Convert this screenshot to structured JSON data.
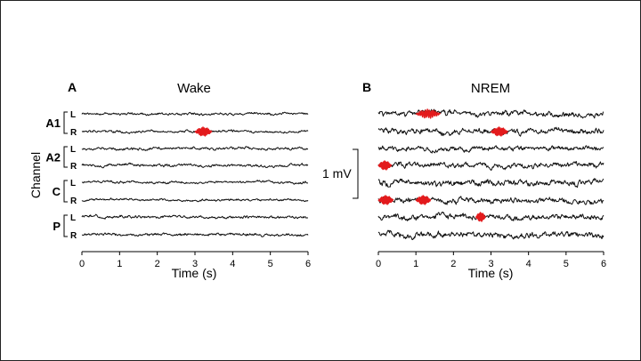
{
  "figure": {
    "ylabel": "Channel",
    "scale_bar_label": "1 mV",
    "colors": {
      "trace": "#111111",
      "spindle": "#e31a1c"
    }
  },
  "channels": [
    {
      "group": "A1",
      "sides": [
        "L",
        "R"
      ]
    },
    {
      "group": "A2",
      "sides": [
        "L",
        "R"
      ]
    },
    {
      "group": "C",
      "sides": [
        "L",
        "R"
      ]
    },
    {
      "group": "P",
      "sides": [
        "L",
        "R"
      ]
    }
  ],
  "chart_data": [
    {
      "type": "line",
      "panel": "A",
      "title": "Wake",
      "xlabel": "Time (s)",
      "xlim": [
        0,
        6
      ],
      "xticks": [
        "0",
        "1",
        "2",
        "3",
        "4",
        "5",
        "6"
      ],
      "series_labels": [
        "A1 L",
        "A1 R",
        "A2 L",
        "A2 R",
        "C L",
        "C R",
        "P L",
        "P R"
      ],
      "traces": {
        "channel_count": 8,
        "amplitude_mV": [
          0.05,
          0.05,
          0.06,
          0.06,
          0.05,
          0.05,
          0.06,
          0.06
        ]
      },
      "highlighted_events": [
        {
          "channel": "A1 R",
          "start_s": 3.0,
          "end_s": 3.45
        }
      ]
    },
    {
      "type": "line",
      "panel": "B",
      "title": "NREM",
      "xlabel": "Time (s)",
      "xlim": [
        0,
        6
      ],
      "xticks": [
        "0",
        "1",
        "2",
        "3",
        "4",
        "5",
        "6"
      ],
      "series_labels": [
        "A1 L",
        "A1 R",
        "A2 L",
        "A2 R",
        "C L",
        "C R",
        "P L",
        "P R"
      ],
      "traces": {
        "channel_count": 8,
        "amplitude_mV": [
          0.12,
          0.12,
          0.1,
          0.11,
          0.13,
          0.12,
          0.12,
          0.13
        ]
      },
      "highlighted_events": [
        {
          "channel": "A1 L",
          "start_s": 1.0,
          "end_s": 1.65
        },
        {
          "channel": "A1 R",
          "start_s": 3.0,
          "end_s": 3.45
        },
        {
          "channel": "A2 R",
          "start_s": 0.0,
          "end_s": 0.35
        },
        {
          "channel": "C R",
          "start_s": 0.0,
          "end_s": 0.4
        },
        {
          "channel": "C R",
          "start_s": 1.0,
          "end_s": 1.4
        },
        {
          "channel": "P L",
          "start_s": 2.6,
          "end_s": 2.85
        }
      ]
    }
  ]
}
